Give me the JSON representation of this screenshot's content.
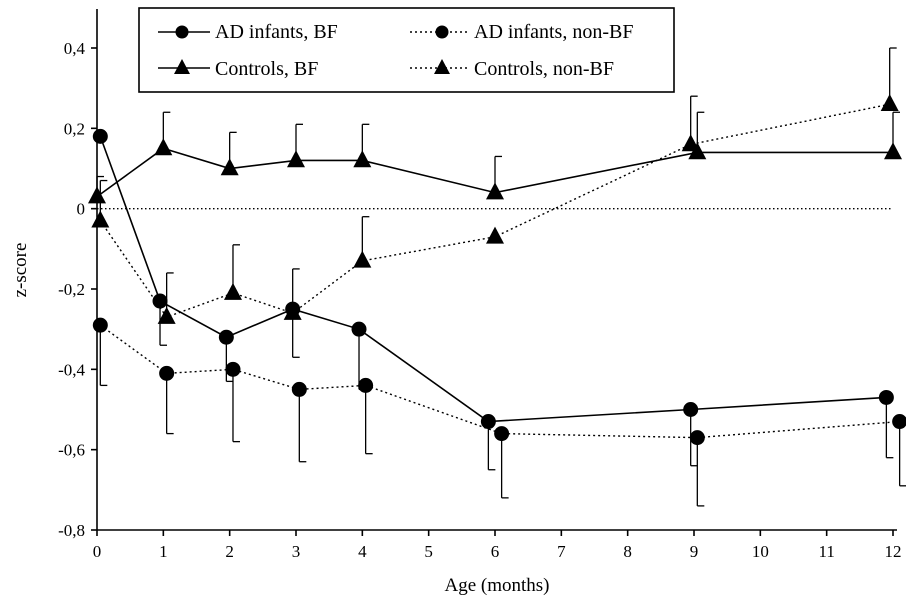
{
  "chart_data": {
    "type": "line",
    "title": "",
    "xlabel": "Age (months)",
    "ylabel": "z-score",
    "xlim": [
      0,
      12
    ],
    "ylim": [
      -0.8,
      0.4
    ],
    "x_ticks": [
      "0",
      "1",
      "2",
      "3",
      "4",
      "5",
      "6",
      "7",
      "8",
      "9",
      "10",
      "11",
      "12"
    ],
    "y_ticks": [
      "0,4",
      "0,2",
      "0",
      "-0,2",
      "-0,4",
      "-0,6",
      "-0,8"
    ],
    "grid": false,
    "legend_position": "top",
    "reference_line": 0,
    "series": [
      {
        "name": "AD infants, BF",
        "marker": "circle",
        "line": "solid",
        "x": [
          0.05,
          0.95,
          1.95,
          2.95,
          3.95,
          5.9,
          8.95,
          11.9
        ],
        "y": [
          0.18,
          -0.23,
          -0.32,
          -0.25,
          -0.3,
          -0.53,
          -0.5,
          -0.47
        ],
        "err": [
          0.0,
          0.11,
          0.11,
          0.12,
          0.15,
          0.12,
          0.14,
          0.15
        ]
      },
      {
        "name": "AD infants, non-BF",
        "marker": "circle",
        "line": "dotted",
        "x": [
          0.05,
          1.05,
          2.05,
          3.05,
          4.05,
          6.1,
          9.05,
          12.1
        ],
        "y": [
          -0.29,
          -0.41,
          -0.4,
          -0.45,
          -0.44,
          -0.56,
          -0.57,
          -0.53
        ],
        "err": [
          0.15,
          0.15,
          0.18,
          0.18,
          0.17,
          0.16,
          0.17,
          0.16
        ]
      },
      {
        "name": "Controls, BF",
        "marker": "triangle",
        "line": "solid",
        "x": [
          0.0,
          1.0,
          2.0,
          3.0,
          4.0,
          6.0,
          9.05,
          12.0
        ],
        "y": [
          0.03,
          0.15,
          0.1,
          0.12,
          0.12,
          0.04,
          0.14,
          0.14
        ],
        "err": [
          0.05,
          0.09,
          0.09,
          0.09,
          0.09,
          0.09,
          0.1,
          0.1
        ]
      },
      {
        "name": "Controls, non-BF",
        "marker": "triangle",
        "line": "dotted",
        "x": [
          0.05,
          1.05,
          2.05,
          2.95,
          4.0,
          6.0,
          8.95,
          11.95
        ],
        "y": [
          -0.03,
          -0.27,
          -0.21,
          -0.26,
          -0.13,
          -0.07,
          0.16,
          0.26
        ],
        "err": [
          0.1,
          0.11,
          0.12,
          0.11,
          0.11,
          0.0,
          0.12,
          0.14
        ]
      }
    ]
  }
}
